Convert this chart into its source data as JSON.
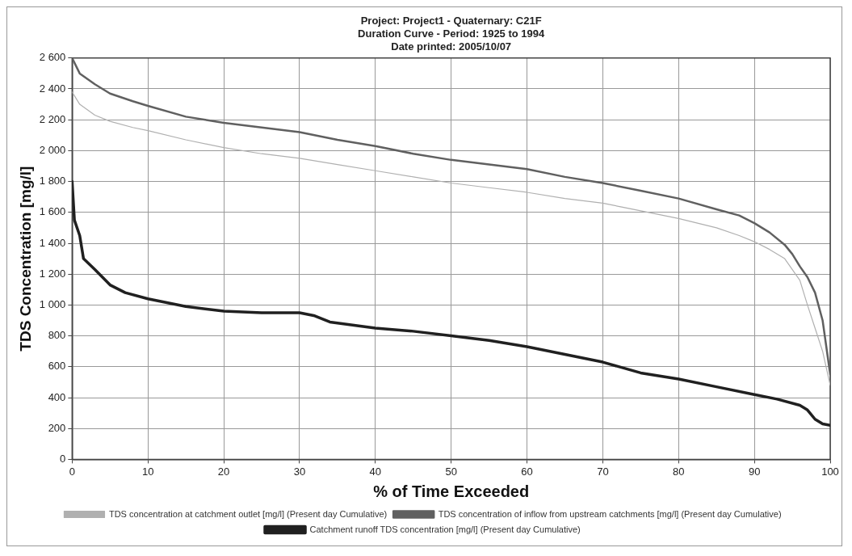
{
  "chart_data": {
    "type": "line",
    "title": [
      "Project: Project1 - Quaternary: C21F",
      "Duration Curve - Period: 1925 to 1994",
      "Date printed: 2005/10/07"
    ],
    "xlabel": "% of Time Exceeded",
    "ylabel": "TDS Concentration [mg/l]",
    "xlim": [
      0,
      100
    ],
    "xticks": [
      0,
      10,
      20,
      30,
      40,
      50,
      60,
      70,
      80,
      90,
      100
    ],
    "ylim": [
      0,
      2600
    ],
    "yticks": [
      0,
      200,
      400,
      600,
      800,
      {
        "value": 1000,
        "label": "1 000"
      },
      {
        "value": 1200,
        "label": "1 200"
      },
      {
        "value": 1400,
        "label": "1 400"
      },
      {
        "value": 1600,
        "label": "1 600"
      },
      {
        "value": 1800,
        "label": "1 800"
      },
      {
        "value": 2000,
        "label": "2 000"
      },
      {
        "value": 2200,
        "label": "2 200"
      },
      {
        "value": 2400,
        "label": "2 400"
      },
      {
        "value": 2600,
        "label": "2 600"
      }
    ],
    "grid": true,
    "legend": "bottom",
    "marker": "none",
    "line_style": "solid",
    "series": [
      {
        "name": "TDS concentration at catchment outlet [mg/l] (Present day Cumulative)",
        "color": "#b0b0b0",
        "x": [
          0,
          1,
          3,
          5,
          8,
          10,
          15,
          20,
          25,
          30,
          35,
          40,
          45,
          50,
          55,
          60,
          65,
          70,
          75,
          80,
          85,
          88,
          90,
          92,
          94,
          96,
          97,
          98,
          99,
          100
        ],
        "values": [
          2380,
          2300,
          2230,
          2190,
          2150,
          2130,
          2070,
          2020,
          1980,
          1950,
          1910,
          1870,
          1830,
          1790,
          1760,
          1730,
          1690,
          1660,
          1610,
          1560,
          1500,
          1450,
          1410,
          1360,
          1300,
          1160,
          1000,
          850,
          700,
          480
        ]
      },
      {
        "name": "TDS concentration of inflow from upstream catchments [mg/l] (Present day Cumulative)",
        "color": "#606060",
        "x": [
          0,
          1,
          3,
          5,
          8,
          10,
          15,
          20,
          25,
          30,
          35,
          40,
          45,
          50,
          55,
          60,
          65,
          70,
          75,
          80,
          85,
          88,
          90,
          92,
          94,
          95,
          96,
          97,
          98,
          99,
          100
        ],
        "values": [
          2600,
          2500,
          2430,
          2370,
          2320,
          2290,
          2220,
          2180,
          2150,
          2120,
          2070,
          2030,
          1980,
          1940,
          1910,
          1880,
          1830,
          1790,
          1740,
          1690,
          1620,
          1580,
          1530,
          1470,
          1390,
          1330,
          1250,
          1180,
          1080,
          900,
          550
        ]
      },
      {
        "name": "Catchment runoff TDS concentration [mg/l] (Present day Cumulative)",
        "color": "#202020",
        "x": [
          0,
          0.3,
          1,
          1.5,
          3,
          5,
          7,
          10,
          15,
          20,
          25,
          30,
          32,
          34,
          40,
          45,
          50,
          55,
          60,
          65,
          70,
          75,
          80,
          85,
          90,
          93,
          96,
          97,
          98,
          99,
          100
        ],
        "values": [
          1800,
          1550,
          1450,
          1300,
          1230,
          1130,
          1080,
          1040,
          990,
          960,
          950,
          950,
          930,
          890,
          850,
          830,
          800,
          770,
          730,
          680,
          630,
          560,
          520,
          470,
          420,
          390,
          350,
          320,
          260,
          230,
          220
        ]
      }
    ]
  }
}
